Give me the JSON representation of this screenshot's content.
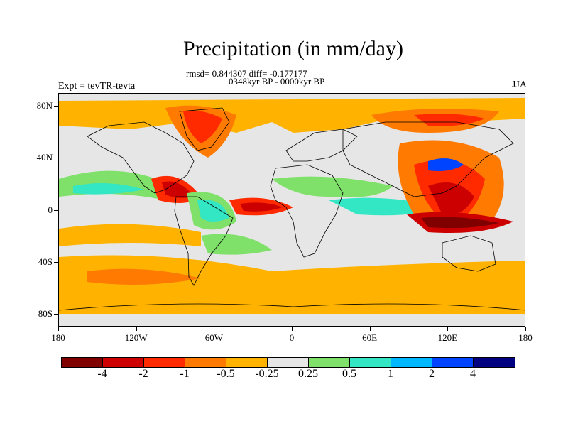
{
  "title": "Precipitation (in mm/day)",
  "stats": "rmsd= 0.844307 diff= -0.177177",
  "period": "0348kyr BP - 0000kyr BP",
  "experiment": "Expt = tevTR-tevta",
  "season": "JJA",
  "map": {
    "lat_range": [
      -90,
      90
    ],
    "lon_range": [
      -180,
      180
    ],
    "y_ticks": [
      {
        "label": "80N",
        "lat": 80
      },
      {
        "label": "40N",
        "lat": 40
      },
      {
        "label": "0",
        "lat": 0
      },
      {
        "label": "40S",
        "lat": -40
      },
      {
        "label": "80S",
        "lat": -80
      }
    ],
    "x_ticks": [
      {
        "label": "180",
        "lon": -180
      },
      {
        "label": "120W",
        "lon": -120
      },
      {
        "label": "60W",
        "lon": -60
      },
      {
        "label": "0",
        "lon": 0
      },
      {
        "label": "60E",
        "lon": 60
      },
      {
        "label": "120E",
        "lon": 120
      },
      {
        "label": "180",
        "lon": 180
      }
    ]
  },
  "legend": {
    "colors": [
      "#800000",
      "#cc0000",
      "#ff2a00",
      "#ff7a00",
      "#ffb300",
      "#e6e6e6",
      "#7fe06a",
      "#33e6c4",
      "#00b8ff",
      "#0044ff",
      "#000080"
    ],
    "labels": [
      {
        "text": "-4",
        "boundary": 1
      },
      {
        "text": "-2",
        "boundary": 2
      },
      {
        "text": "-1",
        "boundary": 3
      },
      {
        "text": "-0.5",
        "boundary": 4
      },
      {
        "text": "-0.25",
        "boundary": 5
      },
      {
        "text": "0.25",
        "boundary": 6
      },
      {
        "text": "0.5",
        "boundary": 7
      },
      {
        "text": "1",
        "boundary": 8
      },
      {
        "text": "2",
        "boundary": 9
      },
      {
        "text": "4",
        "boundary": 10
      }
    ]
  }
}
